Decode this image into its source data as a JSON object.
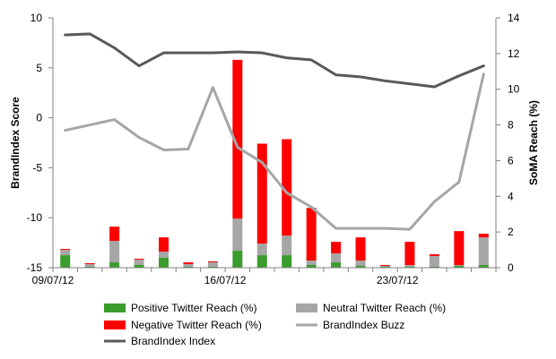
{
  "chart_data": {
    "type": "bar",
    "ylabel": "BrandIndex Score",
    "y2label": "SoMA Reach (%)",
    "ylim": [
      -15,
      10
    ],
    "y_ticks": [
      "10",
      "5",
      "0",
      "-5",
      "-10",
      "-15"
    ],
    "y2lim": [
      0,
      14
    ],
    "y2_ticks": [
      "14",
      "12",
      "10",
      "8",
      "6",
      "4",
      "2",
      "0"
    ],
    "x_tick_labels": [
      {
        "index": 0,
        "label": "09/07/12"
      },
      {
        "index": 7,
        "label": "16/07/12"
      },
      {
        "index": 14,
        "label": "23/07/12"
      }
    ],
    "n_points": 18,
    "bars": {
      "axis": "secondary",
      "stacked": true,
      "series": [
        {
          "name": "Positive Twitter Reach (%)",
          "color": "#3a9c2c",
          "values": [
            0.7,
            0.05,
            0.3,
            0.15,
            0.55,
            0.05,
            0.05,
            0.95,
            0.7,
            0.7,
            0.15,
            0.3,
            0.1,
            0.05,
            0.05,
            0.05,
            0.1,
            0.15
          ]
        },
        {
          "name": "Neutral Twitter Reach (%)",
          "color": "#a6a6a6",
          "values": [
            0.3,
            0.15,
            1.2,
            0.3,
            0.35,
            0.15,
            0.25,
            1.8,
            0.65,
            1.1,
            0.25,
            0.5,
            0.3,
            0.05,
            0.1,
            0.6,
            0.05,
            1.55
          ]
        },
        {
          "name": "Negative Twitter Reach (%)",
          "color": "#ff0000",
          "values": [
            0.05,
            0.05,
            0.8,
            0.05,
            0.8,
            0.1,
            0.05,
            8.9,
            5.6,
            5.4,
            2.95,
            0.65,
            1.3,
            0.05,
            1.3,
            0.1,
            1.9,
            0.2
          ]
        }
      ]
    },
    "lines": [
      {
        "name": "BrandIndex Buzz",
        "axis": "secondary",
        "color": "#a6a6a6",
        "values": [
          7.7,
          8.0,
          8.3,
          7.3,
          6.6,
          6.65,
          10.1,
          6.75,
          5.9,
          4.2,
          3.4,
          2.2,
          2.2,
          2.2,
          2.15,
          3.7,
          4.8,
          10.85
        ]
      },
      {
        "name": "BrandIndex Index",
        "axis": "primary",
        "color": "#595959",
        "values": [
          8.3,
          8.4,
          7.0,
          5.2,
          6.5,
          6.5,
          6.5,
          6.6,
          6.5,
          6.0,
          5.8,
          4.3,
          4.1,
          3.7,
          3.4,
          3.1,
          4.2,
          5.2
        ]
      }
    ],
    "legend": {
      "placement": "bottom",
      "entries": [
        {
          "label": "Positive Twitter Reach (%)",
          "kind": "box",
          "color": "#3a9c2c"
        },
        {
          "label": "Neutral Twitter Reach (%)",
          "kind": "box",
          "color": "#a6a6a6"
        },
        {
          "label": "Negative Twitter Reach (%)",
          "kind": "box",
          "color": "#ff0000"
        },
        {
          "label": "BrandIndex Buzz",
          "kind": "line",
          "color": "#a6a6a6"
        },
        {
          "label": "BrandIndex Index",
          "kind": "line",
          "color": "#595959"
        }
      ]
    },
    "grid": false
  }
}
